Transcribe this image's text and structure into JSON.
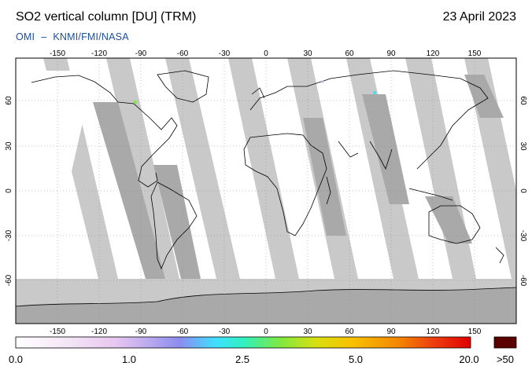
{
  "header": {
    "title": "SO2 vertical column [DU] (TRM)",
    "date": "23 April 2023",
    "instrument": "OMI",
    "separator": "–",
    "source": "KNMI/FMI/NASA"
  },
  "map": {
    "lon_ticks": [
      "-150",
      "-120",
      "-90",
      "-60",
      "-30",
      "0",
      "30",
      "60",
      "90",
      "120",
      "150"
    ],
    "lat_ticks": [
      "60",
      "30",
      "0",
      "-30",
      "-60"
    ],
    "colors": {
      "no_data": "#c9c9c9",
      "swath_gap": "#d4d4d4",
      "land_dark": "#a9a9a9",
      "valid_low": "#ffffff"
    }
  },
  "colorbar": {
    "labels": [
      "0.0",
      "1.0",
      "2.5",
      "5.0",
      "20.0"
    ],
    "overflow_label": ">50",
    "overflow_color": "#5a0000",
    "gradient_colors": [
      "#ffffff",
      "#f1dcf3",
      "#c9a8ea",
      "#8e88f0",
      "#3ec8ff",
      "#2cf0c8",
      "#7ee840",
      "#d6e010",
      "#f6b800",
      "#f07a00",
      "#e01010"
    ]
  }
}
